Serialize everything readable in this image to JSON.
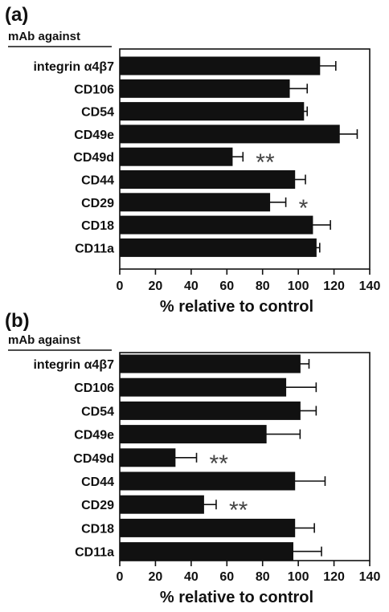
{
  "chart_data": [
    {
      "type": "bar",
      "orientation": "horizontal",
      "panel_label": "(a)",
      "category_header": "mAb against",
      "categories": [
        "integrin α4β7",
        "CD106",
        "CD54",
        "CD49e",
        "CD49d",
        "CD44",
        "CD29",
        "CD18",
        "CD11a"
      ],
      "values": [
        112,
        95,
        103,
        123,
        63,
        98,
        84,
        108,
        110
      ],
      "errors": [
        9,
        10,
        2,
        10,
        6,
        6,
        9,
        10,
        2
      ],
      "annotations": [
        "",
        "",
        "",
        "",
        "**",
        "",
        "*",
        "",
        ""
      ],
      "xlabel": "% relative to control",
      "xlim": [
        0,
        140
      ],
      "xticks": [
        0,
        20,
        40,
        60,
        80,
        100,
        120,
        140
      ]
    },
    {
      "type": "bar",
      "orientation": "horizontal",
      "panel_label": "(b)",
      "category_header": "mAb against",
      "categories": [
        "integrin α4β7",
        "CD106",
        "CD54",
        "CD49e",
        "CD49d",
        "CD44",
        "CD29",
        "CD18",
        "CD11a"
      ],
      "values": [
        101,
        93,
        101,
        82,
        31,
        98,
        47,
        98,
        97
      ],
      "errors": [
        5,
        17,
        9,
        19,
        12,
        17,
        7,
        11,
        16
      ],
      "annotations": [
        "",
        "",
        "",
        "",
        "**",
        "",
        "**",
        "",
        ""
      ],
      "xlabel": "% relative to control",
      "xlim": [
        0,
        140
      ],
      "xticks": [
        0,
        20,
        40,
        60,
        80,
        100,
        120,
        140
      ]
    }
  ]
}
